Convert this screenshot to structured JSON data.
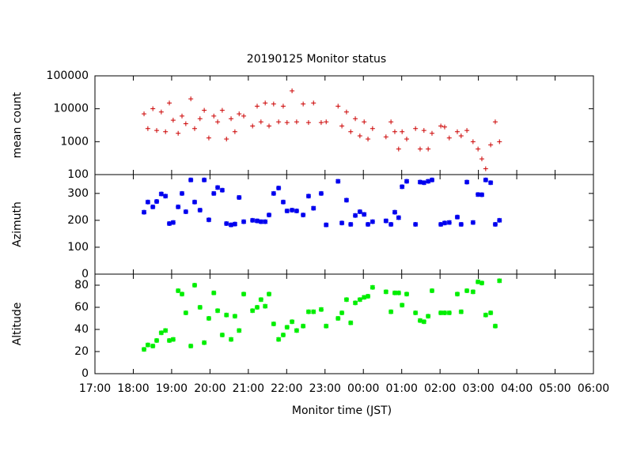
{
  "chart_data": [
    {
      "type": "scatter",
      "title": "20190125 Monitor status",
      "y_label": "mean count",
      "log_y": true,
      "marker": "plus",
      "color": "#cc0000",
      "xlim": [
        17,
        30
      ],
      "ylim": [
        100,
        100000
      ],
      "yticks": [
        100,
        1000,
        10000,
        100000
      ],
      "x": [
        18.28,
        18.38,
        18.51,
        18.61,
        18.73,
        18.84,
        18.94,
        19.04,
        19.17,
        19.27,
        19.37,
        19.5,
        19.6,
        19.74,
        19.85,
        19.97,
        20.1,
        20.2,
        20.32,
        20.43,
        20.55,
        20.65,
        20.76,
        20.88,
        21.11,
        21.23,
        21.33,
        21.44,
        21.54,
        21.66,
        21.79,
        21.91,
        22.01,
        22.14,
        22.26,
        22.43,
        22.57,
        22.7,
        22.9,
        23.03,
        23.34,
        23.44,
        23.56,
        23.67,
        23.79,
        23.91,
        24.02,
        24.12,
        24.24,
        24.59,
        24.72,
        24.82,
        24.92,
        25.01,
        25.13,
        25.36,
        25.48,
        25.58,
        25.69,
        25.79,
        26.02,
        26.12,
        26.24,
        26.45,
        26.55,
        26.7,
        26.86,
        26.99,
        27.09,
        27.19,
        27.32,
        27.44,
        27.55
      ],
      "values": [
        7000,
        2500,
        10000,
        2200,
        8000,
        2000,
        15000,
        4500,
        1800,
        6000,
        3500,
        20000,
        2500,
        5000,
        9000,
        1300,
        6000,
        4000,
        9000,
        1200,
        5000,
        2000,
        7000,
        6000,
        3000,
        12000,
        4000,
        15000,
        3000,
        14000,
        4000,
        12000,
        3800,
        35000,
        4000,
        14000,
        3800,
        15000,
        3800,
        4000,
        12000,
        3000,
        8000,
        2000,
        5000,
        1500,
        4000,
        1200,
        2500,
        1400,
        4000,
        2000,
        600,
        2000,
        1200,
        2500,
        600,
        2200,
        600,
        1800,
        3000,
        2800,
        1300,
        2000,
        1500,
        2200,
        1000,
        600,
        300,
        150,
        800,
        4000,
        1000
      ]
    },
    {
      "type": "scatter",
      "y_label": "Azimuth",
      "marker": "star",
      "color": "#0000ee",
      "xlim": [
        17,
        30
      ],
      "ylim": [
        0,
        370
      ],
      "yticks": [
        0,
        100,
        200,
        300
      ],
      "x": [
        18.28,
        18.38,
        18.51,
        18.61,
        18.73,
        18.84,
        18.94,
        19.04,
        19.17,
        19.27,
        19.37,
        19.5,
        19.6,
        19.74,
        19.85,
        19.97,
        20.1,
        20.2,
        20.32,
        20.43,
        20.55,
        20.65,
        20.76,
        20.88,
        21.11,
        21.23,
        21.33,
        21.44,
        21.54,
        21.66,
        21.79,
        21.91,
        22.01,
        22.14,
        22.26,
        22.43,
        22.57,
        22.7,
        22.9,
        23.03,
        23.34,
        23.44,
        23.56,
        23.67,
        23.79,
        23.91,
        24.02,
        24.12,
        24.24,
        24.59,
        24.72,
        24.82,
        24.92,
        25.01,
        25.13,
        25.36,
        25.48,
        25.58,
        25.69,
        25.79,
        26.02,
        26.12,
        26.24,
        26.45,
        26.55,
        26.7,
        26.86,
        26.99,
        27.09,
        27.19,
        27.32,
        27.44,
        27.55
      ],
      "values": [
        230,
        268,
        250,
        270,
        298,
        290,
        188,
        192,
        250,
        300,
        232,
        350,
        268,
        238,
        350,
        202,
        300,
        322,
        312,
        188,
        183,
        186,
        285,
        195,
        200,
        198,
        195,
        195,
        220,
        300,
        320,
        268,
        235,
        238,
        235,
        220,
        290,
        245,
        300,
        183,
        345,
        190,
        275,
        185,
        218,
        232,
        222,
        185,
        195,
        198,
        185,
        230,
        210,
        325,
        345,
        185,
        342,
        340,
        345,
        350,
        185,
        190,
        192,
        212,
        185,
        342,
        192,
        296,
        295,
        350,
        340,
        185,
        200
      ]
    },
    {
      "type": "scatter",
      "y_label": "Altitude",
      "x_label": "Monitor time (JST)",
      "marker": "star",
      "color": "#00ee00",
      "xlim": [
        17,
        30
      ],
      "ylim": [
        0,
        90
      ],
      "yticks": [
        0,
        20,
        40,
        60,
        80
      ],
      "xticks": [
        {
          "value": 17,
          "label": "17:00"
        },
        {
          "value": 18,
          "label": "18:00"
        },
        {
          "value": 19,
          "label": "19:00"
        },
        {
          "value": 20,
          "label": "20:00"
        },
        {
          "value": 21,
          "label": "21:00"
        },
        {
          "value": 22,
          "label": "22:00"
        },
        {
          "value": 23,
          "label": "23:00"
        },
        {
          "value": 24,
          "label": "00:00"
        },
        {
          "value": 25,
          "label": "01:00"
        },
        {
          "value": 26,
          "label": "02:00"
        },
        {
          "value": 27,
          "label": "03:00"
        },
        {
          "value": 28,
          "label": "04:00"
        },
        {
          "value": 29,
          "label": "05:00"
        },
        {
          "value": 30,
          "label": "06:00"
        }
      ],
      "x": [
        18.28,
        18.38,
        18.51,
        18.61,
        18.73,
        18.84,
        18.94,
        19.04,
        19.17,
        19.27,
        19.37,
        19.5,
        19.6,
        19.74,
        19.85,
        19.97,
        20.1,
        20.2,
        20.32,
        20.43,
        20.55,
        20.65,
        20.76,
        20.88,
        21.11,
        21.23,
        21.33,
        21.44,
        21.54,
        21.66,
        21.79,
        21.91,
        22.01,
        22.14,
        22.26,
        22.43,
        22.57,
        22.7,
        22.9,
        23.03,
        23.34,
        23.44,
        23.56,
        23.67,
        23.79,
        23.91,
        24.02,
        24.12,
        24.24,
        24.59,
        24.72,
        24.82,
        24.92,
        25.01,
        25.13,
        25.36,
        25.48,
        25.58,
        25.69,
        25.79,
        26.02,
        26.12,
        26.24,
        26.45,
        26.55,
        26.7,
        26.86,
        26.99,
        27.09,
        27.19,
        27.32,
        27.44,
        27.55
      ],
      "values": [
        22,
        26,
        25,
        30,
        37,
        39,
        30,
        31,
        75,
        72,
        55,
        25,
        80,
        60,
        28,
        50,
        73,
        57,
        35,
        53,
        31,
        52,
        39,
        72,
        57,
        60,
        67,
        61,
        72,
        45,
        31,
        35,
        42,
        47,
        39,
        43,
        56,
        56,
        58,
        43,
        50,
        55,
        67,
        46,
        64,
        67,
        69,
        70,
        78,
        74,
        56,
        73,
        73,
        62,
        72,
        55,
        48,
        47,
        52,
        75,
        55,
        55,
        55,
        72,
        56,
        75,
        74,
        83,
        82,
        53,
        55,
        43,
        84
      ]
    }
  ]
}
